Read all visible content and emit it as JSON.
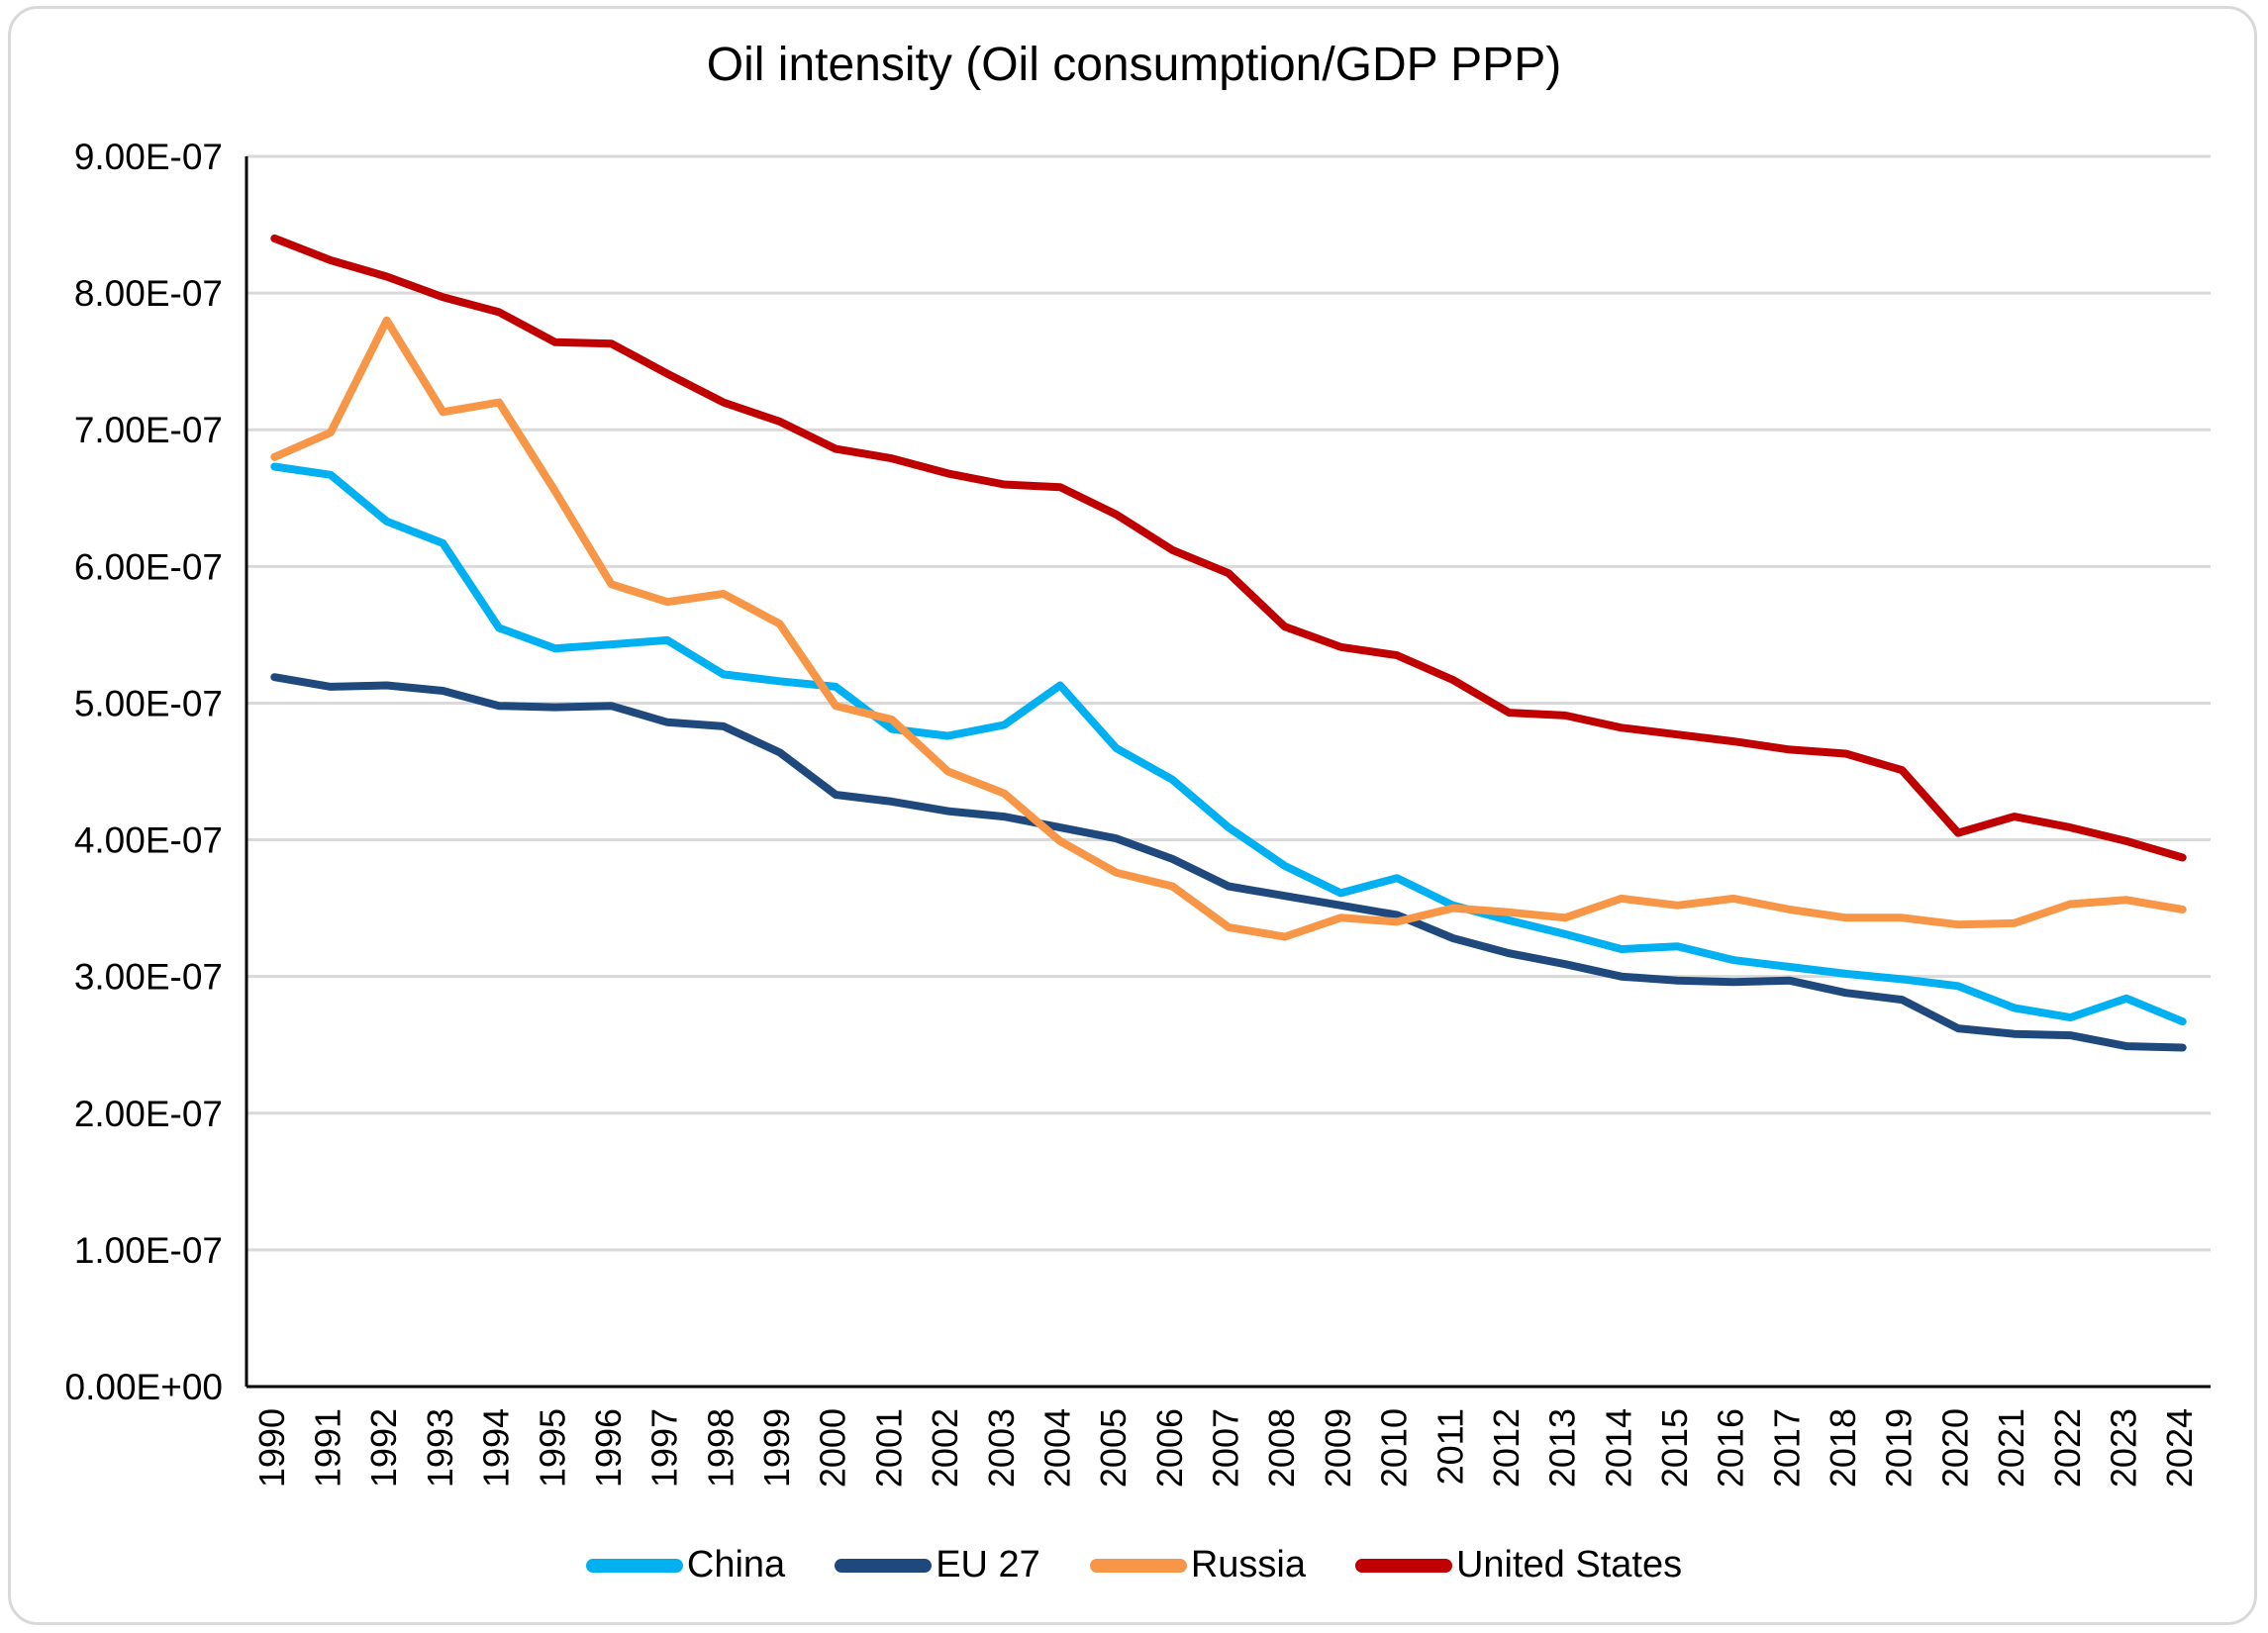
{
  "chart_data": {
    "type": "line",
    "title": "Oil intensity (Oil consumption/GDP PPP)",
    "xlabel": "",
    "ylabel": "",
    "ylim": [
      0,
      9e-07
    ],
    "yticks": [
      "0.00E+00",
      "1.00E-07",
      "2.00E-07",
      "3.00E-07",
      "4.00E-07",
      "5.00E-07",
      "6.00E-07",
      "7.00E-07",
      "8.00E-07",
      "9.00E-07"
    ],
    "ytick_values": [
      0,
      1e-07,
      2e-07,
      3e-07,
      4e-07,
      5e-07,
      6e-07,
      7e-07,
      8e-07,
      9e-07
    ],
    "grid": true,
    "legend_position": "bottom",
    "x": [
      "1990",
      "1991",
      "1992",
      "1993",
      "1994",
      "1995",
      "1996",
      "1997",
      "1998",
      "1999",
      "2000",
      "2001",
      "2002",
      "2003",
      "2004",
      "2005",
      "2006",
      "2007",
      "2008",
      "2009",
      "2010",
      "2011",
      "2012",
      "2013",
      "2014",
      "2015",
      "2016",
      "2017",
      "2018",
      "2019",
      "2020",
      "2021",
      "2022",
      "2023",
      "2024"
    ],
    "series": [
      {
        "name": "China",
        "color": "#00b0f0",
        "values": [
          6.73e-07,
          6.67e-07,
          6.33e-07,
          6.17e-07,
          5.55e-07,
          5.4e-07,
          5.43e-07,
          5.46e-07,
          5.21e-07,
          5.16e-07,
          5.12e-07,
          4.81e-07,
          4.76e-07,
          4.84e-07,
          5.13e-07,
          4.67e-07,
          4.44e-07,
          4.09e-07,
          3.81e-07,
          3.61e-07,
          3.72e-07,
          3.52e-07,
          3.41e-07,
          3.31e-07,
          3.2e-07,
          3.22e-07,
          3.12e-07,
          3.07e-07,
          3.02e-07,
          2.98e-07,
          2.93e-07,
          2.77e-07,
          2.7e-07,
          2.84e-07,
          2.67e-07
        ]
      },
      {
        "name": "EU 27",
        "color": "#1f497d",
        "values": [
          5.19e-07,
          5.12e-07,
          5.13e-07,
          5.09e-07,
          4.98e-07,
          4.97e-07,
          4.98e-07,
          4.86e-07,
          4.83e-07,
          4.64e-07,
          4.33e-07,
          4.28e-07,
          4.21e-07,
          4.17e-07,
          4.09e-07,
          4.01e-07,
          3.86e-07,
          3.66e-07,
          3.59e-07,
          3.52e-07,
          3.45e-07,
          3.28e-07,
          3.17e-07,
          3.09e-07,
          3e-07,
          2.97e-07,
          2.96e-07,
          2.97e-07,
          2.88e-07,
          2.83e-07,
          2.62e-07,
          2.58e-07,
          2.57e-07,
          2.49e-07,
          2.48e-07
        ]
      },
      {
        "name": "Russia",
        "color": "#f79646",
        "values": [
          6.8e-07,
          6.98e-07,
          7.8e-07,
          7.13e-07,
          7.2e-07,
          6.55e-07,
          5.87e-07,
          5.74e-07,
          5.8e-07,
          5.58e-07,
          4.98e-07,
          4.88e-07,
          4.5e-07,
          4.34e-07,
          3.99e-07,
          3.76e-07,
          3.66e-07,
          3.36e-07,
          3.29e-07,
          3.43e-07,
          3.4e-07,
          3.5e-07,
          3.47e-07,
          3.43e-07,
          3.57e-07,
          3.52e-07,
          3.57e-07,
          3.49e-07,
          3.43e-07,
          3.43e-07,
          3.38e-07,
          3.39e-07,
          3.53e-07,
          3.56e-07,
          3.49e-07
        ]
      },
      {
        "name": "United States",
        "color": "#c00000",
        "values": [
          8.4e-07,
          8.24e-07,
          8.12e-07,
          7.97e-07,
          7.86e-07,
          7.64e-07,
          7.63e-07,
          7.41e-07,
          7.2e-07,
          7.06e-07,
          6.86e-07,
          6.79e-07,
          6.68e-07,
          6.6e-07,
          6.58e-07,
          6.38e-07,
          6.12e-07,
          5.95e-07,
          5.56e-07,
          5.41e-07,
          5.35e-07,
          5.17e-07,
          4.93e-07,
          4.91e-07,
          4.82e-07,
          4.77e-07,
          4.72e-07,
          4.66e-07,
          4.63e-07,
          4.51e-07,
          4.05e-07,
          4.17e-07,
          4.09e-07,
          3.99e-07,
          3.87e-07
        ]
      }
    ]
  }
}
